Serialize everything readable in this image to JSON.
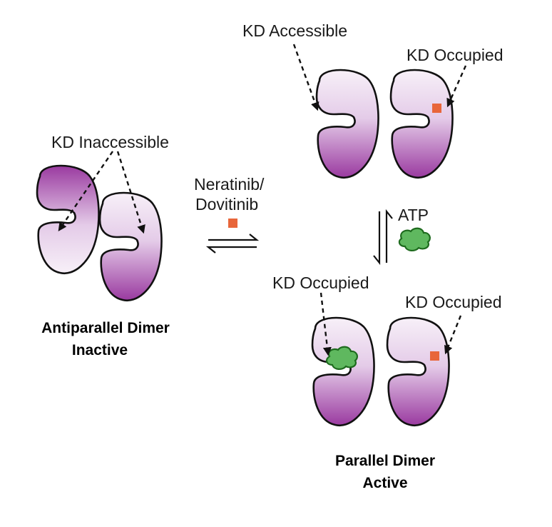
{
  "labels": {
    "kd_accessible": "KD Accessible",
    "kd_occupied_top": "KD Occupied",
    "kd_inaccessible": "KD Inaccessible",
    "drug_line1": "Neratinib/",
    "drug_line2": "Dovitinib",
    "atp": "ATP",
    "kd_occupied_left": "KD Occupied",
    "kd_occupied_right": "KD Occupied"
  },
  "titles": {
    "antiparallel_line1": "Antiparallel Dimer",
    "antiparallel_line2": "Inactive",
    "parallel_line1": "Parallel Dimer",
    "parallel_line2": "Active"
  },
  "colors": {
    "lobe_light": "#f6eef7",
    "lobe_mid": "#d7b6dc",
    "lobe_dark": "#9c3ca1",
    "drug": "#e8663a",
    "atp_fill": "#5fb85f",
    "atp_stroke": "#1e6b1e"
  },
  "icons": [
    "kinase-lobe-icon",
    "drug-square-icon",
    "atp-blob-icon",
    "equilibrium-arrows-icon"
  ]
}
